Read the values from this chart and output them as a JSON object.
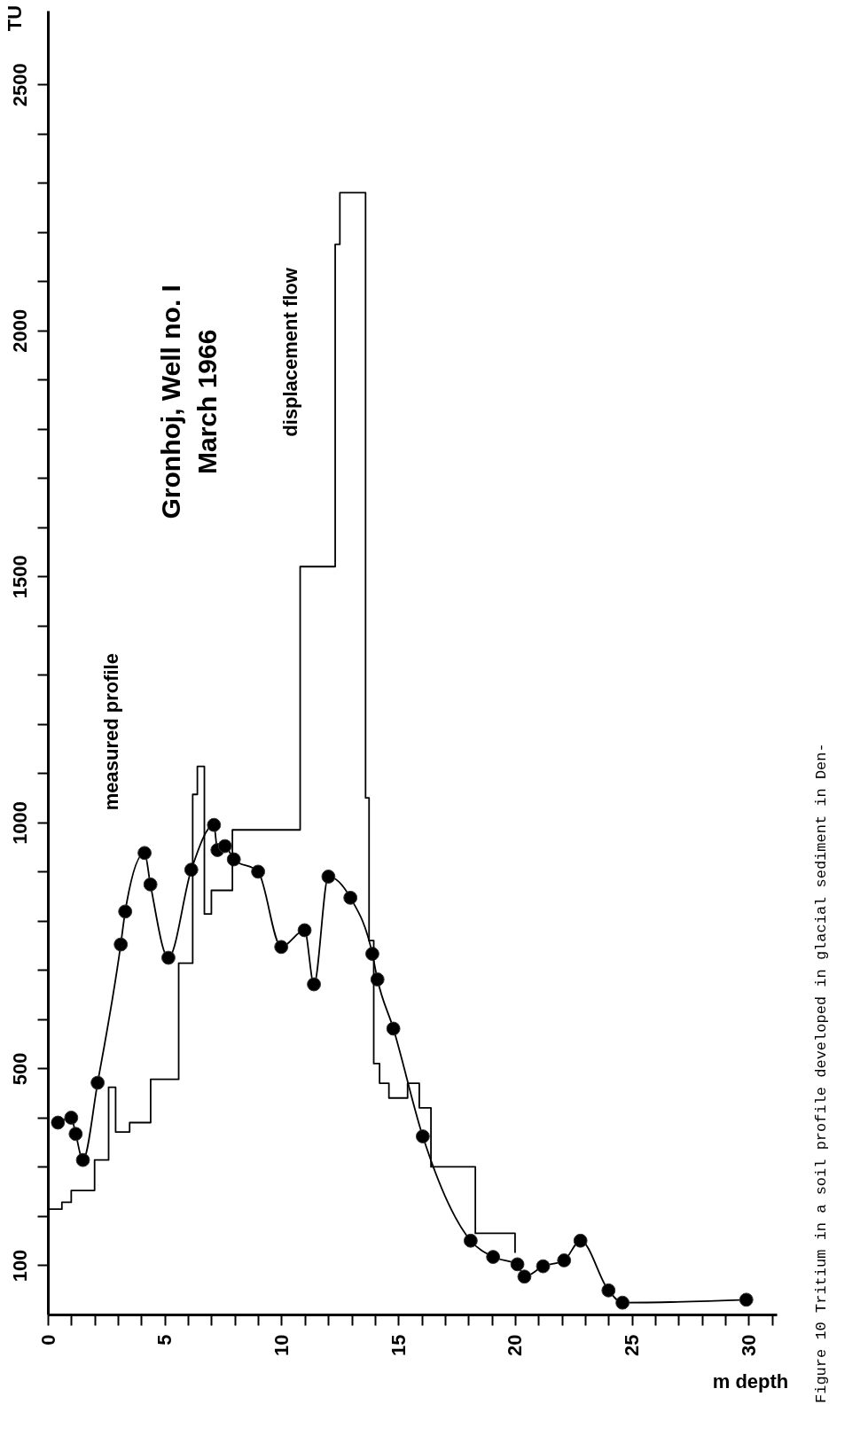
{
  "chart_data": {
    "type": "line",
    "title": "Gronhoj, Well no. I",
    "subtitle": "March 1966",
    "xlabel": "m depth",
    "ylabel": "TU",
    "annotations": [
      "Figure 10  Tritium in a soil profile developed in glacial sediment in Den-"
    ],
    "xlim": [
      0,
      31.2
    ],
    "ylim": [
      0,
      2650
    ],
    "xticks": [
      0,
      {
        "value": 1,
        "label": null
      },
      {
        "value": 2,
        "label": null
      },
      {
        "value": 3,
        "label": null
      },
      {
        "value": 4,
        "label": null
      },
      5,
      {
        "value": 6,
        "label": null
      },
      {
        "value": 7,
        "label": null
      },
      {
        "value": 8,
        "label": null
      },
      {
        "value": 9,
        "label": null
      },
      10,
      {
        "value": 11,
        "label": null
      },
      {
        "value": 12,
        "label": null
      },
      {
        "value": 13,
        "label": null
      },
      {
        "value": 14,
        "label": null
      },
      15,
      {
        "value": 16,
        "label": null
      },
      {
        "value": 17,
        "label": null
      },
      {
        "value": 18,
        "label": null
      },
      {
        "value": 19,
        "label": null
      },
      20,
      {
        "value": 21,
        "label": null
      },
      {
        "value": 22,
        "label": null
      },
      {
        "value": 23,
        "label": null
      },
      {
        "value": 24,
        "label": null
      },
      25,
      {
        "value": 26,
        "label": null
      },
      {
        "value": 27,
        "label": null
      },
      {
        "value": 28,
        "label": null
      },
      {
        "value": 29,
        "label": null
      },
      30,
      {
        "value": 31,
        "label": null
      }
    ],
    "yticks": [
      100,
      {
        "value": 200,
        "label": null
      },
      {
        "value": 300,
        "label": null
      },
      {
        "value": 400,
        "label": null
      },
      500,
      {
        "value": 600,
        "label": null
      },
      {
        "value": 700,
        "label": null
      },
      {
        "value": 800,
        "label": null
      },
      {
        "value": 900,
        "label": null
      },
      1000,
      {
        "value": 1100,
        "label": null
      },
      {
        "value": 1200,
        "label": null
      },
      {
        "value": 1300,
        "label": null
      },
      {
        "value": 1400,
        "label": null
      },
      1500,
      {
        "value": 1600,
        "label": null
      },
      {
        "value": 1700,
        "label": null
      },
      {
        "value": 1800,
        "label": null
      },
      {
        "value": 1900,
        "label": null
      },
      2000,
      {
        "value": 2100,
        "label": null
      },
      {
        "value": 2200,
        "label": null
      },
      {
        "value": 2300,
        "label": null
      },
      {
        "value": 2400,
        "label": null
      },
      2500
    ],
    "grid": false,
    "series": [
      {
        "name": "measured profile",
        "marker": "circle",
        "color": "#000000",
        "x": [
          0.43,
          1.0,
          1.19,
          1.5,
          2.13,
          3.12,
          3.31,
          4.14,
          4.39,
          5.16,
          6.14,
          7.11,
          7.26,
          7.58,
          7.96,
          9.0,
          9.99,
          10.99,
          11.39,
          12.01,
          12.95,
          13.89,
          14.11,
          14.79,
          16.05,
          18.1,
          19.06,
          20.1,
          20.4,
          21.2,
          22.1,
          22.8,
          24.0,
          24.6,
          29.9
        ],
        "values": [
          390,
          400,
          367,
          314,
          471,
          752,
          819,
          938,
          874,
          725,
          904,
          995,
          944,
          952,
          925,
          900,
          747,
          781,
          671,
          890,
          847,
          733,
          681,
          581,
          362,
          150,
          117,
          102,
          77,
          98,
          110,
          150,
          49,
          24,
          30
        ]
      },
      {
        "name": "displacement flow",
        "type": "step",
        "color": "#000000",
        "x": [
          0,
          0.6,
          1.0,
          2.0,
          2.6,
          2.9,
          3.5,
          4.4,
          5.6,
          6.2,
          6.4,
          6.7,
          7.0,
          7.9,
          10.8,
          12.3,
          12.5,
          13.6,
          13.75,
          13.95,
          14.2,
          14.6,
          15.4,
          15.9,
          16.4,
          18.3,
          20.0
        ],
        "values": [
          214,
          228,
          252,
          314,
          462,
          371,
          390,
          478,
          714,
          1057,
          1114,
          814,
          862,
          985,
          1520,
          2175,
          2280,
          1050,
          760,
          510,
          470,
          440,
          470,
          420,
          300,
          165,
          125
        ]
      }
    ]
  }
}
